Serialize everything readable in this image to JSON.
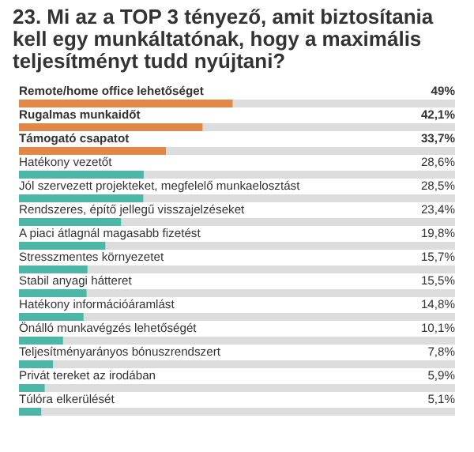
{
  "chart_data": {
    "type": "bar",
    "orientation": "horizontal",
    "title": "23. Mi az a TOP 3 tényező, amit biztosítania kell egy munkáltatónak, hogy a maximális teljesítményt tudd nyújtani?",
    "categories": [
      "Remote/home office lehetőséget",
      "Rugalmas munkaidőt",
      "Támogató csapatot",
      "Hatékony vezetőt",
      "Jól szervezett projekteket, megfelelő munkaelosztást",
      "Rendszeres, építő jellegű visszajelzéseket",
      "A piaci átlagnál magasabb fizetést",
      "Stresszmentes környezetet",
      "Stabil anyagi hátteret",
      "Hatékony információáramlást",
      "Önálló munkavégzés lehetőségét",
      "Teljesítményarányos bónuszrendszert",
      "Privát tereket az irodában",
      "Túlóra elkerülését"
    ],
    "values": [
      49,
      42.1,
      33.7,
      28.6,
      28.5,
      23.4,
      19.8,
      15.7,
      15.5,
      14.8,
      10.1,
      7.8,
      5.9,
      5.1
    ],
    "value_labels": [
      "49%",
      "42,1%",
      "33,7%",
      "28,6%",
      "28,5%",
      "23,4%",
      "19,8%",
      "15,7%",
      "15,5%",
      "14,8%",
      "10,1%",
      "7,8%",
      "5,9%",
      "5,1%"
    ],
    "colors": [
      "#e0874a",
      "#e0874a",
      "#e0874a",
      "#4db6a6",
      "#4db6a6",
      "#4db6a6",
      "#4db6a6",
      "#4db6a6",
      "#4db6a6",
      "#4db6a6",
      "#4db6a6",
      "#4db6a6",
      "#4db6a6",
      "#4db6a6"
    ],
    "xlim": [
      0,
      100
    ],
    "tick_labels": false
  }
}
